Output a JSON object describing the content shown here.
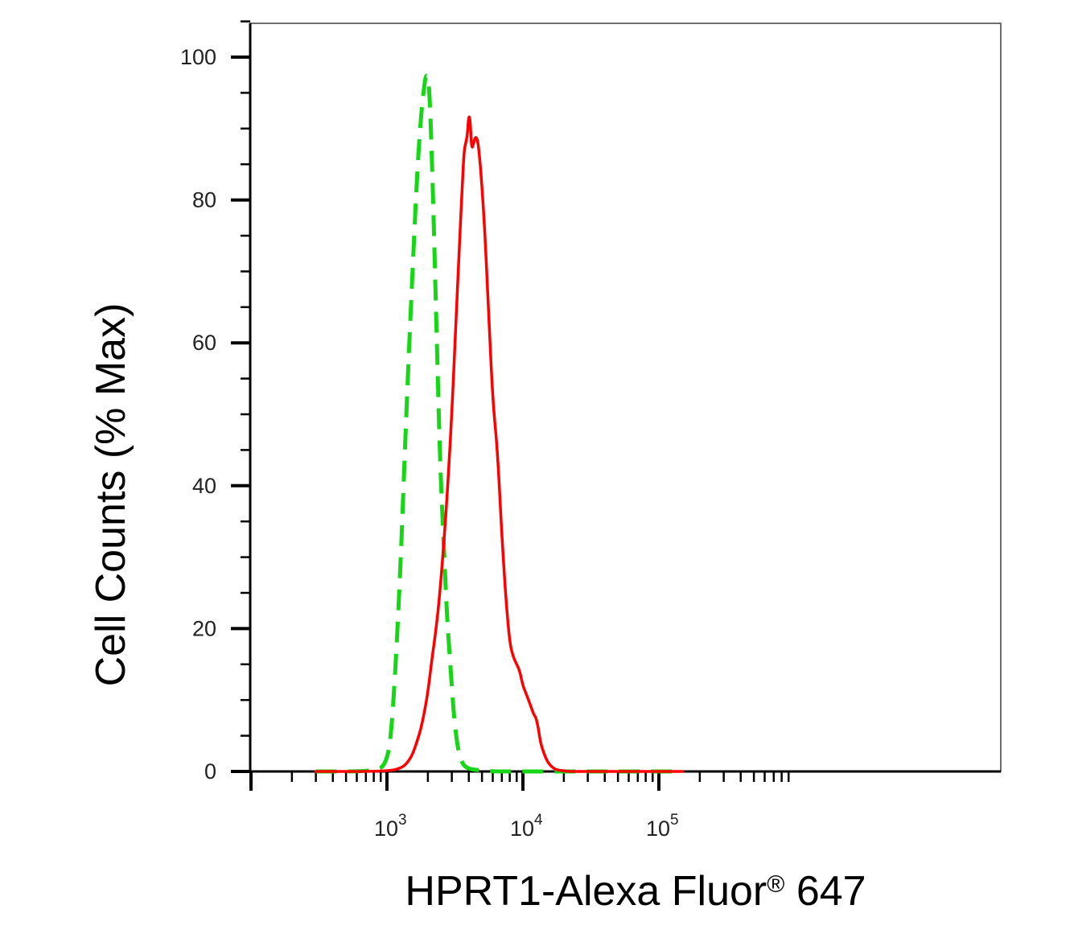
{
  "chart_data": {
    "type": "line",
    "title": "",
    "xlabel": "HPRT1-Alexa Fluor",
    "xlabel_superscript": "®",
    "xlabel_suffix": " 647",
    "ylabel": "Cell Counts (% Max)",
    "xscale": "log",
    "xlim": [
      300,
      150000
    ],
    "ylim": [
      0,
      105
    ],
    "grid": false,
    "legend": "none",
    "x_ticks": [
      {
        "value": 1000,
        "base": "10",
        "exp": "3"
      },
      {
        "value": 10000,
        "base": "10",
        "exp": "4"
      },
      {
        "value": 100000,
        "base": "10",
        "exp": "5"
      }
    ],
    "y_ticks": [
      0,
      20,
      40,
      60,
      80,
      100
    ],
    "series": [
      {
        "color": "#16d616",
        "style": "dashed",
        "x": [
          300,
          800,
          1000,
          1100,
          1250,
          1400,
          1550,
          1650,
          1750,
          1850,
          1950,
          2050,
          2150,
          2300,
          2450,
          2600,
          2700,
          2800,
          2950,
          3100,
          3300,
          3500,
          3800,
          4500,
          6000,
          10000,
          150000
        ],
        "y": [
          0,
          0,
          1,
          7,
          27,
          52,
          71,
          82,
          90,
          95,
          98,
          96,
          85,
          64,
          44,
          33,
          26,
          20,
          14,
          8,
          3.5,
          1.5,
          0.5,
          0.2,
          0,
          0,
          0
        ]
      },
      {
        "color": "#ff0000",
        "style": "solid",
        "x": [
          300,
          1000,
          1300,
          1450,
          1550,
          1650,
          1750,
          1850,
          2000,
          2150,
          2300,
          2450,
          2600,
          2800,
          3000,
          3200,
          3400,
          3600,
          3700,
          3800,
          3900,
          4000,
          4100,
          4200,
          4350,
          4500,
          4700,
          5000,
          5300,
          5600,
          6000,
          6500,
          7000,
          7500,
          8000,
          8500,
          9000,
          9500,
          10000,
          10500,
          11000,
          11500,
          12000,
          12500,
          13000,
          13500,
          14000,
          15000,
          16000,
          17000,
          18000,
          20000,
          22000,
          25000,
          150000
        ],
        "y": [
          0,
          0,
          0.5,
          1.5,
          2.5,
          4,
          5.5,
          7.5,
          11,
          16,
          20,
          25,
          31,
          40,
          50,
          62,
          73,
          83,
          87,
          88,
          89,
          92,
          91,
          87,
          88,
          89,
          88,
          82,
          74,
          64,
          52,
          45,
          33,
          24,
          18,
          16,
          15,
          14,
          12,
          11,
          10,
          9,
          8,
          7.5,
          6,
          4,
          3,
          1.5,
          0.8,
          0.4,
          0.2,
          0.1,
          0,
          0,
          0
        ]
      }
    ]
  }
}
